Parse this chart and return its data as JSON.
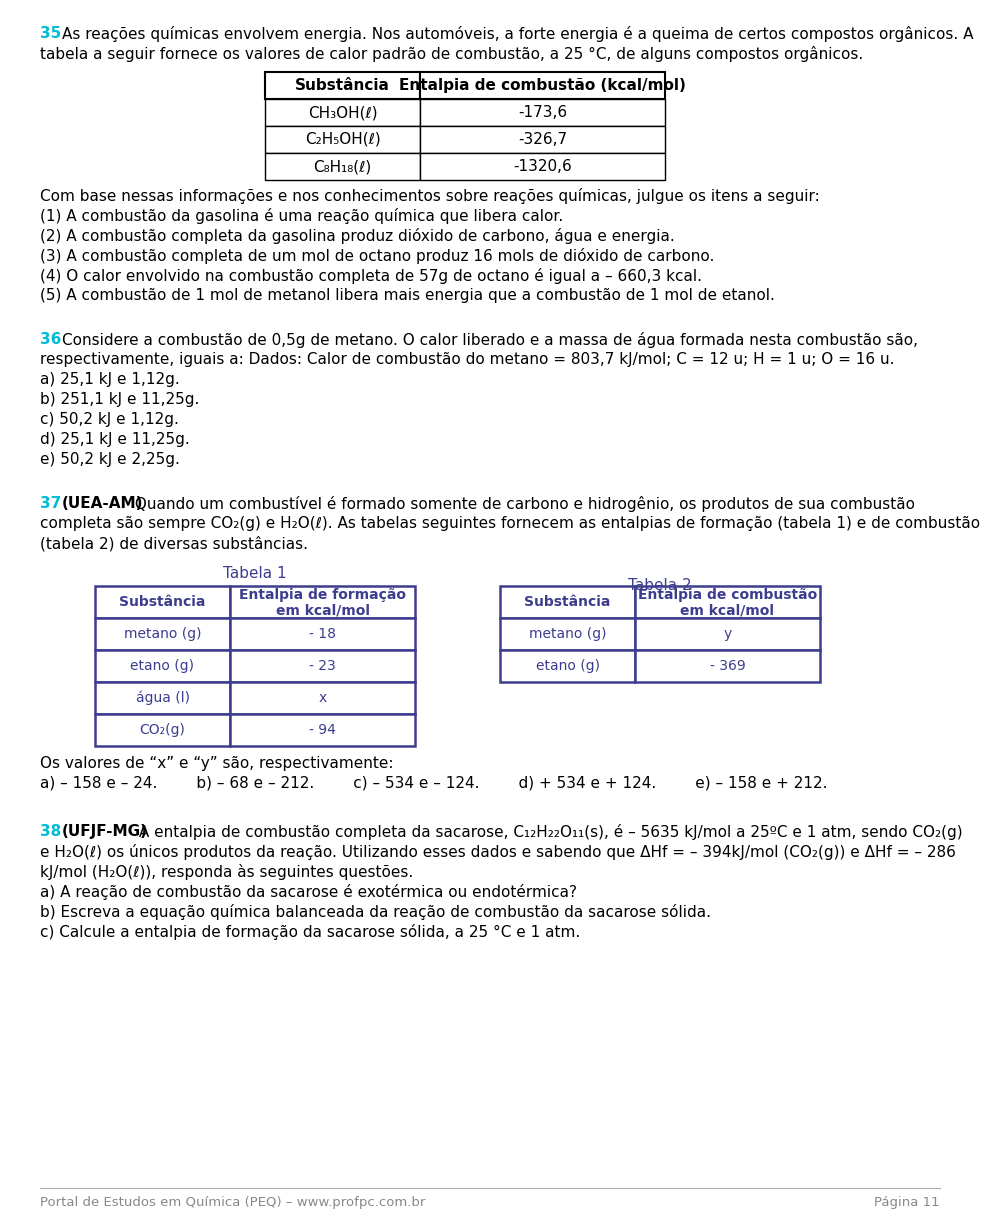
{
  "background_color": "#ffffff",
  "q35_number": "35",
  "q35_text1": "As reações químicas envolvem energia. Nos automóveis, a forte energia é a queima de certos compostos orgânicos. A",
  "q35_text2": "tabela a seguir fornece os valores de calor padrão de combustão, a 25 °C, de alguns compostos orgânicos.",
  "table1_headers": [
    "Substância",
    "Entalpia de combustão (kcal/mol)"
  ],
  "table1_rows": [
    [
      "CH₃OH(ℓ)",
      "-173,6"
    ],
    [
      "C₂H₅OH(ℓ)",
      "-326,7"
    ],
    [
      "C₈H₁₈(ℓ)",
      "-1320,6"
    ]
  ],
  "q35_items": [
    "Com base nessas informações e nos conhecimentos sobre reações químicas, julgue os itens a seguir:",
    "(1) A combustão da gasolina é uma reação química que libera calor.",
    "(2) A combustão completa da gasolina produz dióxido de carbono, água e energia.",
    "(3) A combustão completa de um mol de octano produz 16 mols de dióxido de carbono.",
    "(4) O calor envolvido na combustão completa de 57g de octano é igual a – 660,3 kcal.",
    "(5) A combustão de 1 mol de metanol libera mais energia que a combustão de 1 mol de etanol."
  ],
  "q36_number": "36",
  "q36_line1": "Considere a combustão de 0,5g de metano. O calor liberado e a massa de água formada nesta combustão são,",
  "q36_line2": "respectivamente, iguais a: Dados: Calor de combustão do metano = 803,7 kJ/mol; C = 12 u; H = 1 u; O = 16 u.",
  "q36_options": [
    "a) 25,1 kJ e 1,12g.",
    "b) 251,1 kJ e 11,25g.",
    "c) 50,2 kJ e 1,12g.",
    "d) 25,1 kJ e 11,25g.",
    "e) 50,2 kJ e 2,25g."
  ],
  "q37_number": "37",
  "q37_bold": "(UEA-AM)",
  "q37_line1_rest": " Quando um combustível é formado somente de carbono e hidrogênio, os produtos de sua combustão",
  "q37_line2": "completa são sempre CO₂(g) e H₂O(ℓ). As tabelas seguintes fornecem as entalpias de formação (tabela 1) e de combustão",
  "q37_line3": "(tabela 2) de diversas substâncias.",
  "tabela1_title": "Tabela 1",
  "tabela2_title": "Tabela 2",
  "tabela1_col1_header": "Substância",
  "tabela1_col2_header": "Entalpia de formação\nem kcal/mol",
  "tabela2_col1_header": "Substância",
  "tabela2_col2_header": "Entalpia de combustão\nem kcal/mol",
  "tabela1_rows": [
    [
      "metano (g)",
      "- 18"
    ],
    [
      "etano (g)",
      "- 23"
    ],
    [
      "água (l)",
      "x"
    ],
    [
      "CO₂(g)",
      "- 94"
    ]
  ],
  "tabela2_rows": [
    [
      "metano (g)",
      "y"
    ],
    [
      "etano (g)",
      "- 369"
    ]
  ],
  "q37_answer_text": "Os valores de “x” e “y” são, respectivamente:",
  "q37_options_inline": "a) – 158 e – 24.        b) – 68 e – 212.        c) – 534 e – 124.        d) + 534 e + 124.        e) – 158 e + 212.",
  "q38_number": "38",
  "q38_bold": "(UFJF-MG)",
  "q38_line1_rest": " A entalpia de combustão completa da sacarose, C₁₂H₂₂O₁₁(s), é – 5635 kJ/mol a 25ºC e 1 atm, sendo CO₂(g)",
  "q38_line2": "e H₂O(ℓ) os únicos produtos da reação. Utilizando esses dados e sabendo que ΔHf = – 394kJ/mol (CO₂(g)) e ΔHf = – 286",
  "q38_line3": "kJ/mol (H₂O(ℓ)), responda às seguintes questões.",
  "q38_items": [
    "a) A reação de combustão da sacarose é exotérmica ou endotérmica?",
    "b) Escreva a equação química balanceada da reação de combustão da sacarose sólida.",
    "c) Calcule a entalpia de formação da sacarose sólida, a 25 °C e 1 atm."
  ],
  "footer_left": "Portal de Estudos em Química (PEQ) – www.profpc.com.br",
  "footer_right": "Página 11",
  "number_color": "#00bcd4",
  "purple_color": "#3d3d8f",
  "text_color": "#000000",
  "footer_color": "#888888",
  "lm": 30,
  "fs": 11,
  "lh": 20
}
